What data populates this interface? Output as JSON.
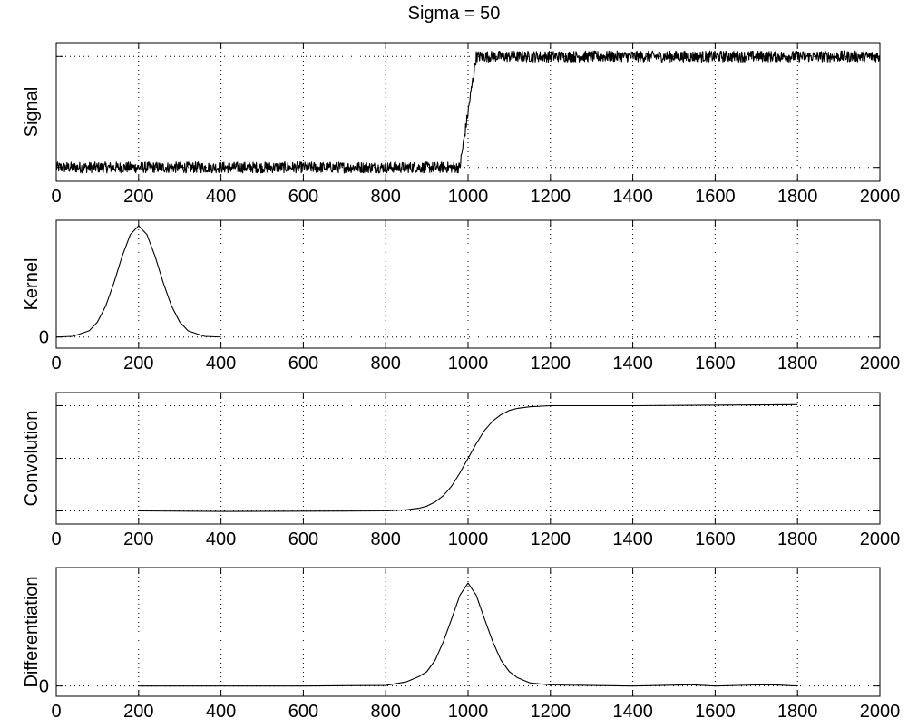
{
  "figure": {
    "title": "Sigma = 50"
  },
  "chart_data": [
    {
      "type": "line",
      "ylabel": "Signal",
      "xlim": [
        0,
        2000
      ],
      "xticks": [
        0,
        200,
        400,
        600,
        800,
        1000,
        1200,
        1400,
        1600,
        1800,
        2000
      ],
      "ylim": [
        -0.25,
        2.25
      ],
      "yticks": [
        0,
        1,
        2
      ],
      "ytick_labels": [
        "",
        "",
        ""
      ],
      "grid": true,
      "series": [
        {
          "color": "#000000",
          "noise_amplitude": 0.1,
          "x": [
            0,
            980,
            1020,
            2000
          ],
          "y": [
            0,
            0,
            2,
            2
          ]
        }
      ]
    },
    {
      "type": "line",
      "ylabel": "Kernel",
      "xlim": [
        0,
        2000
      ],
      "xticks": [
        0,
        200,
        400,
        600,
        800,
        1000,
        1200,
        1400,
        1600,
        1800,
        2000
      ],
      "ylim": [
        -0.1,
        1.05
      ],
      "yticks": [
        0
      ],
      "ytick_labels": [
        "0"
      ],
      "grid": true,
      "series": [
        {
          "color": "#000000",
          "x": [
            0,
            40,
            80,
            100,
            120,
            140,
            160,
            180,
            200,
            220,
            240,
            260,
            280,
            300,
            320,
            360,
            400
          ],
          "y": [
            0.0,
            0.006,
            0.056,
            0.135,
            0.278,
            0.487,
            0.726,
            0.923,
            1.0,
            0.923,
            0.726,
            0.487,
            0.278,
            0.135,
            0.056,
            0.006,
            0.0
          ]
        }
      ]
    },
    {
      "type": "line",
      "ylabel": "Convolution",
      "xlim": [
        0,
        2000
      ],
      "xticks": [
        0,
        200,
        400,
        600,
        800,
        1000,
        1200,
        1400,
        1600,
        1800,
        2000
      ],
      "ylim": [
        -0.25,
        2.25
      ],
      "yticks": [
        0,
        1,
        2
      ],
      "ytick_labels": [
        "",
        "",
        ""
      ],
      "grid": true,
      "series": [
        {
          "color": "#000000",
          "x": [
            200,
            400,
            800,
            850,
            880,
            900,
            920,
            940,
            960,
            980,
            1000,
            1020,
            1040,
            1060,
            1080,
            1100,
            1120,
            1150,
            1200,
            1400,
            1800
          ],
          "y": [
            0.0,
            -0.01,
            0.0,
            0.02,
            0.05,
            0.09,
            0.17,
            0.29,
            0.47,
            0.72,
            1.0,
            1.28,
            1.53,
            1.71,
            1.83,
            1.91,
            1.95,
            1.98,
            2.0,
            2.0,
            2.02
          ]
        }
      ]
    },
    {
      "type": "line",
      "ylabel": "Differentiation",
      "xlim": [
        0,
        2000
      ],
      "xticks": [
        0,
        200,
        400,
        600,
        800,
        1000,
        1200,
        1400,
        1600,
        1800,
        2000
      ],
      "ylim": [
        -0.1,
        1.15
      ],
      "yticks": [
        0
      ],
      "ytick_labels": [
        "0"
      ],
      "grid": true,
      "series": [
        {
          "color": "#000000",
          "x": [
            200,
            400,
            600,
            800,
            850,
            880,
            900,
            920,
            940,
            960,
            980,
            1000,
            1020,
            1040,
            1060,
            1080,
            1100,
            1120,
            1150,
            1200,
            1400,
            1540,
            1600,
            1700,
            1740,
            1800
          ],
          "y": [
            0.0,
            0.0,
            0.0,
            0.005,
            0.04,
            0.09,
            0.14,
            0.25,
            0.43,
            0.65,
            0.88,
            1.0,
            0.88,
            0.65,
            0.43,
            0.25,
            0.14,
            0.08,
            0.03,
            0.01,
            0.0,
            0.012,
            0.0,
            0.01,
            0.012,
            0.0
          ]
        }
      ]
    }
  ]
}
